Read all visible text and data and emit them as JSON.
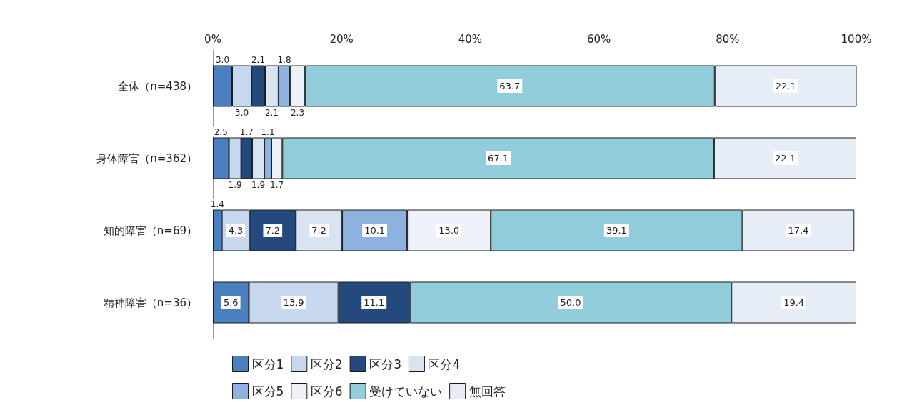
{
  "chart_data": {
    "type": "bar",
    "orientation": "horizontal",
    "stacked": true,
    "legend": "bottom",
    "grid": false,
    "categories": [
      "全体（n=438）",
      "身体障害（n=362）",
      "知的障害（n=69）",
      "精神障害（n=36）"
    ],
    "xlim": [
      0,
      100
    ],
    "xticks": [
      {
        "value": 0,
        "label": "0%"
      },
      {
        "value": 20,
        "label": "20%"
      },
      {
        "value": 40,
        "label": "40%"
      },
      {
        "value": 60,
        "label": "60%"
      },
      {
        "value": 80,
        "label": "80%"
      },
      {
        "value": 100,
        "label": "100%"
      }
    ],
    "value_labels": [
      [
        "3.0",
        "2.5",
        "1.4",
        "5.6"
      ],
      [
        "3.0",
        "1.9",
        "4.3",
        "13.9"
      ],
      [
        "2.1",
        "1.7",
        "7.2",
        "11.1"
      ],
      [
        "2.1",
        "1.9",
        "7.2",
        null
      ],
      [
        "1.8",
        "1.1",
        "10.1",
        null
      ],
      [
        "2.3",
        "1.7",
        "13.0",
        null
      ],
      [
        "63.7",
        "67.1",
        "39.1",
        "50.0"
      ],
      [
        "22.1",
        "22.1",
        "17.4",
        "19.4"
      ]
    ],
    "series": [
      {
        "name": "区分1",
        "color": "#4a7fc0",
        "values": [
          3.0,
          2.5,
          1.4,
          5.6
        ]
      },
      {
        "name": "区分2",
        "color": "#c6d7ee",
        "values": [
          3.0,
          1.9,
          4.3,
          13.9
        ]
      },
      {
        "name": "区分3",
        "color": "#24497d",
        "values": [
          2.1,
          1.7,
          7.2,
          11.1
        ]
      },
      {
        "name": "区分4",
        "color": "#d9e4f3",
        "values": [
          2.1,
          1.9,
          7.2,
          null
        ]
      },
      {
        "name": "区分5",
        "color": "#8db2e0",
        "values": [
          1.8,
          1.1,
          10.1,
          null
        ]
      },
      {
        "name": "区分6",
        "color": "#eef2f8",
        "values": [
          2.3,
          1.7,
          13.0,
          null
        ]
      },
      {
        "name": "受けていない",
        "color": "#92cddc",
        "values": [
          63.7,
          67.1,
          39.1,
          50.0
        ]
      },
      {
        "name": "無回答",
        "color": "#e6edf7",
        "values": [
          22.1,
          22.1,
          17.4,
          19.4
        ]
      }
    ]
  }
}
